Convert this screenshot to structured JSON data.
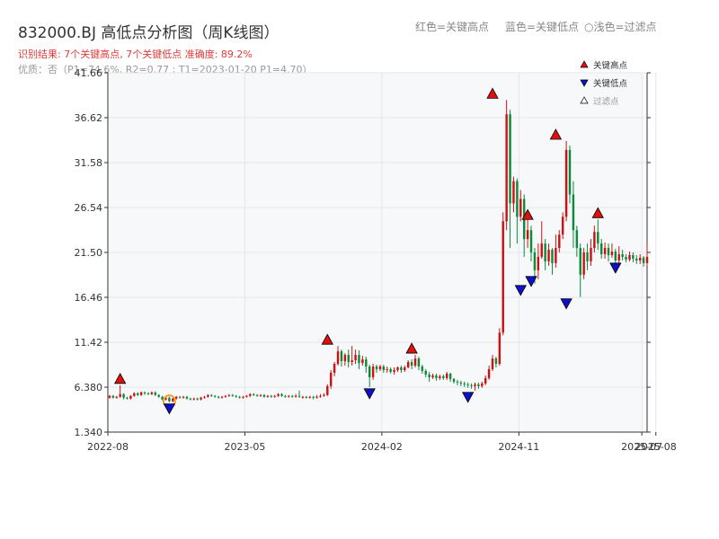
{
  "header": {
    "title": "832000.BJ 高低点分析图（周K线图）",
    "note_red": "红色=关键高点",
    "note_blue": "蓝色=关键低点",
    "note_light": "○浅色=过滤点",
    "result": "识别结果: 7个关键高点, 7个关键低点  准确度: 89.2%",
    "quality": "优质：否（P1=74.6%, R2=0.77 ; T1=2023-01-20 P1=4.70）"
  },
  "chart_data": {
    "type": "candlestick",
    "ylim": [
      1.34,
      41.66
    ],
    "yticks": [
      "1.340",
      "6.380",
      "11.42",
      "16.46",
      "21.50",
      "26.54",
      "31.58",
      "36.62",
      "41.66"
    ],
    "xticks": [
      {
        "label": "2022-08",
        "x": 0
      },
      {
        "label": "2023-05",
        "x": 39
      },
      {
        "label": "2024-02",
        "x": 78
      },
      {
        "label": "2024-11",
        "x": 117
      },
      {
        "label": "2025-07",
        "x": 152
      },
      {
        "label": "2025-08",
        "x": 156
      }
    ],
    "legend": [
      {
        "label": "关键高点",
        "color": "#e01010"
      },
      {
        "label": "关键低点",
        "color": "#1010c8"
      },
      {
        "label": "过滤点",
        "color": "#999999"
      }
    ],
    "colors": {
      "up": "#d01010",
      "down": "#0a8a3a",
      "high": "#e01010",
      "low": "#1010c8",
      "filtered": "#f0a030"
    },
    "candles": [
      [
        5.2,
        5.4,
        5.1,
        5.5
      ],
      [
        5.4,
        5.2,
        5.1,
        5.5
      ],
      [
        5.2,
        5.3,
        5.1,
        5.4
      ],
      [
        5.3,
        5.6,
        5.2,
        6.6
      ],
      [
        5.6,
        5.2,
        5.0,
        5.7
      ],
      [
        5.2,
        5.1,
        5.0,
        5.3
      ],
      [
        5.1,
        5.4,
        5.0,
        5.5
      ],
      [
        5.4,
        5.7,
        5.3,
        5.8
      ],
      [
        5.7,
        5.5,
        5.4,
        5.8
      ],
      [
        5.5,
        5.8,
        5.4,
        5.9
      ],
      [
        5.8,
        5.7,
        5.5,
        5.9
      ],
      [
        5.7,
        5.6,
        5.5,
        5.8
      ],
      [
        5.6,
        5.8,
        5.5,
        5.9
      ],
      [
        5.8,
        5.5,
        5.4,
        5.9
      ],
      [
        5.5,
        5.3,
        5.2,
        5.6
      ],
      [
        5.3,
        5.0,
        4.9,
        5.4
      ],
      [
        5.0,
        5.2,
        4.9,
        5.3
      ],
      [
        5.2,
        4.8,
        4.7,
        5.3
      ],
      [
        4.8,
        5.1,
        4.7,
        5.2
      ],
      [
        5.1,
        5.3,
        5.0,
        5.4
      ],
      [
        5.3,
        5.2,
        5.1,
        5.4
      ],
      [
        5.2,
        5.3,
        5.1,
        5.4
      ],
      [
        5.3,
        5.1,
        5.0,
        5.4
      ],
      [
        5.1,
        5.0,
        4.9,
        5.2
      ],
      [
        5.0,
        5.1,
        4.9,
        5.2
      ],
      [
        5.1,
        5.0,
        4.9,
        5.2
      ],
      [
        5.0,
        5.2,
        4.9,
        5.3
      ],
      [
        5.2,
        5.3,
        5.1,
        5.4
      ],
      [
        5.3,
        5.5,
        5.2,
        5.6
      ],
      [
        5.5,
        5.4,
        5.3,
        5.6
      ],
      [
        5.4,
        5.3,
        5.2,
        5.5
      ],
      [
        5.3,
        5.2,
        5.1,
        5.4
      ],
      [
        5.2,
        5.3,
        5.1,
        5.4
      ],
      [
        5.3,
        5.4,
        5.2,
        5.5
      ],
      [
        5.4,
        5.5,
        5.3,
        5.6
      ],
      [
        5.5,
        5.4,
        5.3,
        5.6
      ],
      [
        5.4,
        5.3,
        5.2,
        5.5
      ],
      [
        5.3,
        5.2,
        5.1,
        5.4
      ],
      [
        5.2,
        5.3,
        5.1,
        5.4
      ],
      [
        5.3,
        5.4,
        5.2,
        5.5
      ],
      [
        5.4,
        5.6,
        5.3,
        5.7
      ],
      [
        5.6,
        5.5,
        5.4,
        5.7
      ],
      [
        5.5,
        5.4,
        5.3,
        5.6
      ],
      [
        5.4,
        5.5,
        5.3,
        5.6
      ],
      [
        5.5,
        5.3,
        5.2,
        5.6
      ],
      [
        5.3,
        5.4,
        5.2,
        5.5
      ],
      [
        5.4,
        5.3,
        5.2,
        5.5
      ],
      [
        5.3,
        5.4,
        5.2,
        5.5
      ],
      [
        5.4,
        5.6,
        5.3,
        5.7
      ],
      [
        5.6,
        5.4,
        5.3,
        5.7
      ],
      [
        5.4,
        5.3,
        5.2,
        5.5
      ],
      [
        5.3,
        5.4,
        5.2,
        5.5
      ],
      [
        5.4,
        5.3,
        5.2,
        5.5
      ],
      [
        5.3,
        5.4,
        5.2,
        5.6
      ],
      [
        5.4,
        5.3,
        5.2,
        6.0
      ],
      [
        5.3,
        5.3,
        5.1,
        5.4
      ],
      [
        5.3,
        5.2,
        5.1,
        5.4
      ],
      [
        5.2,
        5.3,
        5.1,
        5.4
      ],
      [
        5.3,
        5.2,
        5.0,
        5.4
      ],
      [
        5.2,
        5.3,
        5.1,
        5.5
      ],
      [
        5.3,
        5.4,
        5.2,
        5.6
      ],
      [
        5.4,
        5.5,
        5.3,
        5.7
      ],
      [
        5.5,
        6.5,
        5.4,
        6.7
      ],
      [
        6.5,
        8.0,
        6.2,
        8.3
      ],
      [
        8.0,
        9.0,
        7.6,
        9.2
      ],
      [
        9.0,
        10.4,
        8.8,
        11.0
      ],
      [
        10.4,
        9.3,
        8.7,
        10.6
      ],
      [
        9.3,
        10.0,
        8.8,
        10.2
      ],
      [
        10.0,
        9.2,
        8.6,
        10.6
      ],
      [
        9.2,
        9.4,
        8.8,
        11.0
      ],
      [
        9.4,
        10.0,
        9.0,
        10.6
      ],
      [
        10.0,
        9.1,
        8.4,
        10.5
      ],
      [
        9.1,
        9.5,
        8.8,
        9.9
      ],
      [
        9.5,
        8.7,
        8.0,
        9.8
      ],
      [
        8.7,
        7.5,
        6.4,
        8.9
      ],
      [
        7.5,
        8.7,
        7.2,
        9.0
      ],
      [
        8.7,
        8.4,
        8.0,
        8.9
      ],
      [
        8.4,
        8.7,
        8.2,
        8.9
      ],
      [
        8.7,
        8.3,
        8.0,
        8.9
      ],
      [
        8.3,
        8.4,
        8.0,
        8.7
      ],
      [
        8.4,
        8.1,
        7.9,
        8.6
      ],
      [
        8.1,
        8.3,
        7.8,
        8.6
      ],
      [
        8.3,
        8.6,
        8.1,
        8.7
      ],
      [
        8.6,
        8.3,
        8.0,
        8.8
      ],
      [
        8.3,
        8.6,
        8.1,
        8.8
      ],
      [
        8.6,
        9.2,
        8.5,
        9.4
      ],
      [
        9.2,
        8.8,
        8.4,
        9.5
      ],
      [
        8.8,
        9.6,
        8.6,
        10.0
      ],
      [
        9.6,
        8.7,
        8.3,
        9.8
      ],
      [
        8.7,
        8.2,
        7.9,
        8.9
      ],
      [
        8.2,
        7.8,
        7.5,
        8.4
      ],
      [
        7.8,
        7.5,
        7.0,
        8.1
      ],
      [
        7.5,
        7.7,
        7.3,
        7.9
      ],
      [
        7.7,
        7.4,
        7.1,
        7.9
      ],
      [
        7.4,
        7.6,
        7.2,
        7.8
      ],
      [
        7.6,
        7.4,
        7.2,
        7.8
      ],
      [
        7.4,
        7.9,
        7.2,
        8.1
      ],
      [
        7.9,
        7.3,
        7.0,
        8.0
      ],
      [
        7.3,
        7.0,
        6.8,
        7.4
      ],
      [
        7.0,
        6.9,
        6.6,
        7.2
      ],
      [
        6.9,
        6.8,
        6.5,
        7.1
      ],
      [
        6.8,
        6.7,
        6.4,
        7.0
      ],
      [
        6.7,
        6.6,
        6.3,
        6.9
      ],
      [
        6.6,
        6.5,
        6.2,
        6.8
      ],
      [
        6.5,
        6.7,
        6.0,
        6.9
      ],
      [
        6.7,
        6.5,
        6.2,
        6.9
      ],
      [
        6.5,
        6.8,
        6.3,
        7.0
      ],
      [
        6.8,
        7.4,
        6.6,
        7.7
      ],
      [
        7.4,
        8.4,
        7.2,
        8.8
      ],
      [
        8.4,
        9.6,
        8.2,
        10.0
      ],
      [
        9.6,
        9.0,
        8.6,
        9.8
      ],
      [
        9.0,
        12.5,
        8.8,
        13.0
      ],
      [
        12.5,
        25.0,
        12.2,
        26.0
      ],
      [
        25.0,
        37.0,
        24.0,
        38.6
      ],
      [
        37.0,
        27.0,
        22.0,
        37.5
      ],
      [
        27.0,
        29.5,
        26.0,
        30.0
      ],
      [
        29.5,
        25.5,
        22.5,
        29.8
      ],
      [
        25.5,
        27.5,
        25.0,
        28.5
      ],
      [
        27.5,
        23.0,
        21.0,
        28.0
      ],
      [
        23.0,
        24.0,
        22.0,
        26.0
      ],
      [
        24.0,
        21.5,
        20.5,
        24.5
      ],
      [
        21.5,
        19.5,
        18.0,
        22.0
      ],
      [
        19.5,
        21.0,
        18.5,
        22.5
      ],
      [
        21.0,
        22.5,
        20.8,
        25.0
      ],
      [
        22.5,
        20.5,
        19.5,
        23.0
      ],
      [
        20.5,
        21.8,
        20.0,
        22.5
      ],
      [
        21.8,
        20.3,
        19.0,
        22.0
      ],
      [
        20.3,
        22.0,
        19.8,
        23.5
      ],
      [
        22.0,
        23.5,
        21.5,
        24.0
      ],
      [
        23.5,
        25.5,
        23.0,
        26.0
      ],
      [
        25.5,
        33.0,
        25.0,
        34.0
      ],
      [
        33.0,
        28.0,
        27.0,
        33.5
      ],
      [
        28.0,
        24.0,
        22.0,
        29.5
      ],
      [
        24.0,
        22.0,
        21.0,
        24.5
      ],
      [
        22.0,
        19.0,
        16.5,
        22.5
      ],
      [
        19.0,
        21.5,
        18.5,
        22.0
      ],
      [
        21.5,
        20.5,
        19.5,
        22.5
      ],
      [
        20.5,
        22.0,
        20.0,
        23.0
      ],
      [
        22.0,
        23.8,
        21.5,
        24.5
      ],
      [
        23.8,
        22.5,
        21.8,
        25.2
      ],
      [
        22.5,
        21.3,
        20.8,
        23.0
      ],
      [
        21.3,
        22.0,
        20.8,
        22.6
      ],
      [
        22.0,
        21.2,
        20.5,
        22.5
      ],
      [
        21.2,
        21.6,
        20.9,
        22.5
      ],
      [
        21.6,
        20.6,
        20.0,
        21.9
      ],
      [
        20.6,
        21.3,
        20.3,
        22.2
      ],
      [
        21.3,
        21.0,
        20.6,
        21.8
      ],
      [
        21.0,
        20.7,
        20.4,
        21.3
      ],
      [
        20.7,
        21.2,
        20.5,
        21.6
      ],
      [
        21.2,
        20.8,
        20.4,
        21.5
      ],
      [
        20.8,
        20.6,
        20.2,
        21.2
      ],
      [
        20.6,
        20.9,
        20.2,
        21.3
      ],
      [
        20.9,
        20.3,
        19.9,
        21.1
      ],
      [
        20.3,
        21.0,
        20.0,
        22.5
      ]
    ],
    "high_points": [
      [
        3,
        6.6
      ],
      [
        62,
        11.0
      ],
      [
        86,
        10.0
      ],
      [
        109,
        38.6
      ],
      [
        119,
        25.0
      ],
      [
        127,
        34.0
      ],
      [
        139,
        25.2
      ]
    ],
    "low_points": [
      [
        17,
        4.7
      ],
      [
        74,
        6.4
      ],
      [
        102,
        6.0
      ],
      [
        117,
        18.0
      ],
      [
        120,
        19.0
      ],
      [
        130,
        16.5
      ],
      [
        144,
        20.5
      ]
    ],
    "filtered_points": [
      [
        17,
        4.8
      ]
    ]
  }
}
